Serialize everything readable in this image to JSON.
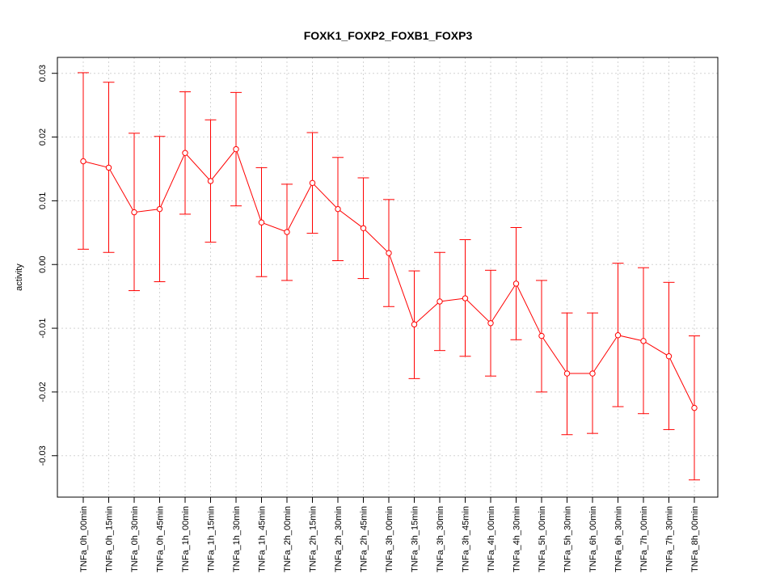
{
  "chart_data": {
    "type": "line",
    "title": "FOXK1_FOXP2_FOXB1_FOXP3",
    "xlabel": "",
    "ylabel": "activity",
    "categories": [
      "TNFa_0h_00min",
      "TNFa_0h_15min",
      "TNFa_0h_30min",
      "TNFa_0h_45min",
      "TNFa_1h_00min",
      "TNFa_1h_15min",
      "TNFa_1h_30min",
      "TNFa_1h_45min",
      "TNFa_2h_00min",
      "TNFa_2h_15min",
      "TNFa_2h_30min",
      "TNFa_2h_45min",
      "TNFa_3h_00min",
      "TNFa_3h_15min",
      "TNFa_3h_30min",
      "TNFa_3h_45min",
      "TNFa_4h_00min",
      "TNFa_4h_30min",
      "TNFa_5h_00min",
      "TNFa_5h_30min",
      "TNFa_6h_00min",
      "TNFa_6h_30min",
      "TNFa_7h_00min",
      "TNFa_7h_30min",
      "TNFa_8h_00min"
    ],
    "series": [
      {
        "values": [
          0.0162,
          0.0152,
          0.0082,
          0.0087,
          0.0175,
          0.0131,
          0.0181,
          0.0066,
          0.0051,
          0.0128,
          0.0087,
          0.0057,
          0.0018,
          -0.0094,
          -0.0058,
          -0.0053,
          -0.0092,
          -0.003,
          -0.0112,
          -0.0171,
          -0.0171,
          -0.0111,
          -0.012,
          -0.0144,
          -0.0225
        ],
        "upper": [
          0.0301,
          0.0286,
          0.0206,
          0.0201,
          0.0271,
          0.0227,
          0.027,
          0.0152,
          0.0126,
          0.0207,
          0.0168,
          0.0136,
          0.0102,
          -0.001,
          0.0019,
          0.0039,
          -0.0009,
          0.0058,
          -0.0025,
          -0.0076,
          -0.0076,
          0.0002,
          -0.0005,
          -0.0028,
          -0.0112
        ],
        "lower": [
          0.0024,
          0.0019,
          -0.0041,
          -0.0027,
          0.0079,
          0.0035,
          0.0092,
          -0.0019,
          -0.0025,
          0.0049,
          0.0006,
          -0.0022,
          -0.0066,
          -0.0179,
          -0.0135,
          -0.0144,
          -0.0175,
          -0.0118,
          -0.02,
          -0.0267,
          -0.0265,
          -0.0223,
          -0.0234,
          -0.0259,
          -0.0338
        ],
        "color": "#ff0000"
      }
    ],
    "yticks": [
      -0.03,
      -0.02,
      -0.01,
      0.0,
      0.01,
      0.02,
      0.03
    ],
    "ytick_labels": [
      "-0.03",
      "-0.02",
      "-0.01",
      "0.00",
      "0.01",
      "0.02",
      "0.03"
    ],
    "ylim": [
      -0.0365,
      0.0325
    ],
    "grid": true,
    "grid_color": "#d3d3d3",
    "axis_color": "#000000"
  }
}
